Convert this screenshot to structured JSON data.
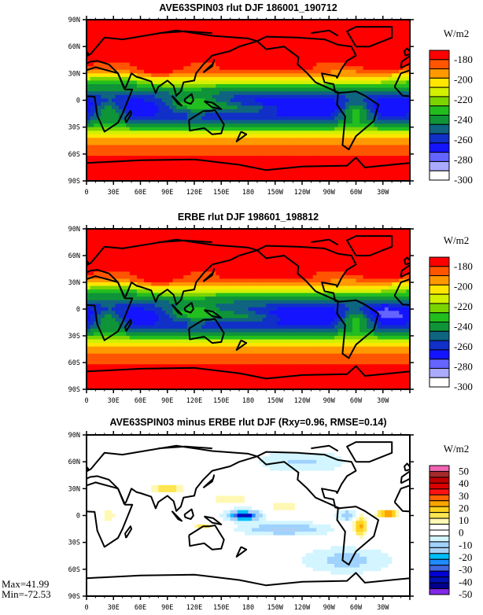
{
  "chart_data": [
    {
      "type": "heatmap",
      "title": "AVE63SPIN03 rlut DJF 186001_190712",
      "units": "W/m2",
      "x_ticks": [
        "0",
        "30E",
        "60E",
        "90E",
        "120E",
        "150E",
        "180",
        "150W",
        "120W",
        "90W",
        "60W",
        "30W"
      ],
      "y_ticks": [
        "90N",
        "60N",
        "30N",
        "0",
        "30S",
        "60S",
        "90S"
      ],
      "colorbar_labels": [
        "-180",
        "-200",
        "-220",
        "-240",
        "-260",
        "-280",
        "-300"
      ],
      "levels": [
        -180,
        -190,
        -200,
        -210,
        -220,
        -230,
        -240,
        -250,
        -260,
        -270,
        -280,
        -290,
        -300
      ],
      "colors": [
        "#ff0000",
        "#ff5500",
        "#ff9900",
        "#ffe600",
        "#d2f000",
        "#7ad400",
        "#22be1e",
        "#0f9438",
        "#0f6480",
        "#1030c8",
        "#1414ff",
        "#6464ff",
        "#aaaaff",
        "#ffffff"
      ],
      "xlim": [
        0,
        360
      ],
      "ylim": [
        -90,
        90
      ]
    },
    {
      "type": "heatmap",
      "title": "ERBE rlut DJF 198601_198812",
      "units": "W/m2",
      "x_ticks": [
        "0",
        "30E",
        "60E",
        "90E",
        "120E",
        "150E",
        "180",
        "150W",
        "120W",
        "90W",
        "60W",
        "30W"
      ],
      "y_ticks": [
        "90N",
        "60N",
        "30N",
        "0",
        "30S",
        "60S",
        "90S"
      ],
      "colorbar_labels": [
        "-180",
        "-200",
        "-220",
        "-240",
        "-260",
        "-280",
        "-300"
      ],
      "levels": [
        -180,
        -190,
        -200,
        -210,
        -220,
        -230,
        -240,
        -250,
        -260,
        -270,
        -280,
        -290,
        -300
      ],
      "colors": [
        "#ff0000",
        "#ff5500",
        "#ff9900",
        "#ffe600",
        "#d2f000",
        "#7ad400",
        "#22be1e",
        "#0f9438",
        "#0f6480",
        "#1030c8",
        "#1414ff",
        "#6464ff",
        "#aaaaff",
        "#ffffff"
      ],
      "xlim": [
        0,
        360
      ],
      "ylim": [
        -90,
        90
      ]
    },
    {
      "type": "heatmap",
      "title": "AVE63SPIN03 minus ERBE rlut DJF (Rxy=0.96, RMSE=0.14)",
      "units": "W/m2",
      "x_ticks": [
        "0",
        "30E",
        "60E",
        "90E",
        "120E",
        "150E",
        "180",
        "150W",
        "120W",
        "90W",
        "60W",
        "30W"
      ],
      "y_ticks": [
        "90N",
        "60N",
        "30N",
        "0",
        "30S",
        "60S",
        "90S"
      ],
      "colorbar_labels": [
        "50",
        "40",
        "30",
        "20",
        "10",
        "0",
        "-10",
        "-20",
        "-30",
        "-40",
        "-50"
      ],
      "levels": [
        50,
        45,
        40,
        35,
        30,
        25,
        20,
        15,
        10,
        5,
        0,
        -5,
        -10,
        -15,
        -20,
        -25,
        -30,
        -35,
        -40,
        -45,
        -50
      ],
      "colors": [
        "#f064b4",
        "#a52a2a",
        "#c00000",
        "#dc0000",
        "#ff1414",
        "#ff6400",
        "#ffa500",
        "#ffd21e",
        "#ffe650",
        "#fff8b4",
        "#ffffff",
        "#ffffff",
        "#d2f5ff",
        "#a0d2ff",
        "#aad0f5",
        "#00beff",
        "#1e8cff",
        "#4169e1",
        "#0000d2",
        "#0010b4",
        "#00008c",
        "#8228e6"
      ],
      "max_label": "Max=41.99",
      "min_label": "Min=-72.53",
      "xlim": [
        0,
        360
      ],
      "ylim": [
        -90,
        90
      ]
    }
  ]
}
